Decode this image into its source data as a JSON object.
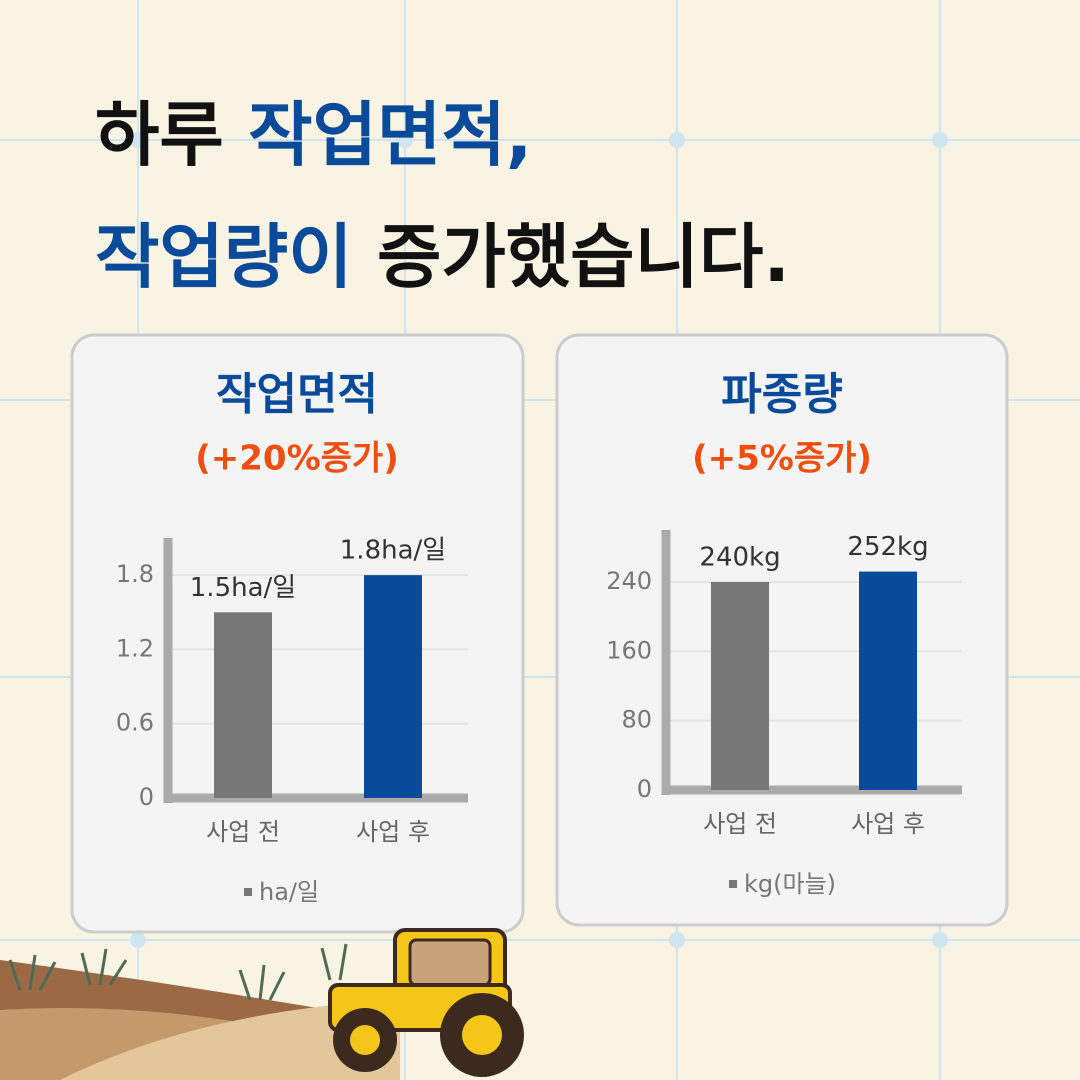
{
  "headline": [
    [
      {
        "text": "하루 ",
        "color": "#111111"
      },
      {
        "text": "작업면적,",
        "color": "#0a4a9a"
      }
    ],
    [
      {
        "text": "작업량이 ",
        "color": "#0a4a9a"
      },
      {
        "text": "증가했습니다.",
        "color": "#111111"
      }
    ]
  ],
  "chart_data": [
    {
      "type": "bar",
      "title": "작업면적",
      "subtitle": "(+20%증가)",
      "categories": [
        "사업 전",
        "사업 후"
      ],
      "series": [
        {
          "name": "ha/일",
          "color": "#777777",
          "bar_colors": [
            "#777777",
            "#0a4a9a"
          ],
          "values": [
            1.5,
            1.8
          ],
          "value_labels": [
            "1.5ha/일",
            "1.8ha/일"
          ]
        }
      ],
      "ylim": [
        0,
        2.1
      ],
      "yticks": [
        0,
        0.6,
        1.2,
        1.8
      ],
      "grid": true
    },
    {
      "type": "bar",
      "title": "파종량",
      "subtitle": "(+5%증가)",
      "categories": [
        "사업 전",
        "사업 후"
      ],
      "series": [
        {
          "name": "kg(마늘)",
          "color": "#777777",
          "bar_colors": [
            "#777777",
            "#0a4a9a"
          ],
          "values": [
            240,
            252
          ],
          "value_labels": [
            "240kg",
            "252kg"
          ]
        }
      ],
      "ylim": [
        0,
        300
      ],
      "yticks": [
        0,
        80,
        160,
        240
      ],
      "grid": true
    }
  ]
}
